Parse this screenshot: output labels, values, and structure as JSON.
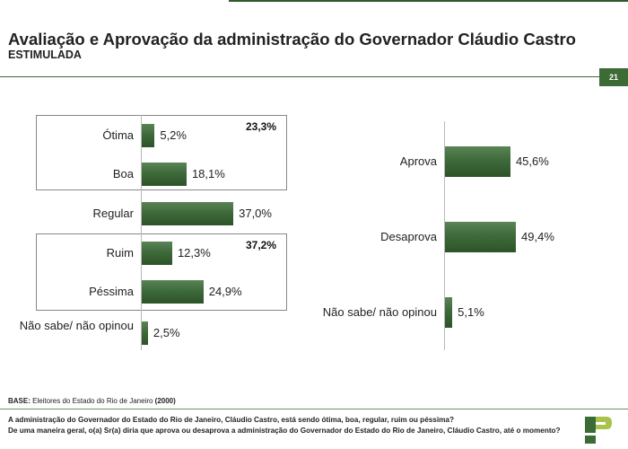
{
  "header": {
    "title": "Avaliação e Aprovação da administração do Governador Cláudio Castro",
    "subtitle": "ESTIMULADA",
    "page_number": "21"
  },
  "chart_data": [
    {
      "type": "bar",
      "orientation": "horizontal",
      "categories": [
        "Ótima",
        "Boa",
        "Regular",
        "Ruim",
        "Péssima",
        "Não sabe/ não opinou"
      ],
      "values": [
        5.2,
        18.1,
        37.0,
        12.3,
        24.9,
        2.5
      ],
      "value_labels": [
        "5,2%",
        "18,1%",
        "37,0%",
        "12,3%",
        "24,9%",
        "2,5%"
      ],
      "xlim": [
        0,
        50
      ],
      "groups": [
        {
          "categories": [
            "Ótima",
            "Boa"
          ],
          "total_label": "23,3%"
        },
        {
          "categories": [
            "Ruim",
            "Péssima"
          ],
          "total_label": "37,2%"
        }
      ],
      "bar_color": "#3e6a3a"
    },
    {
      "type": "bar",
      "orientation": "horizontal",
      "categories": [
        "Aprova",
        "Desaprova",
        "Não sabe/ não opinou"
      ],
      "values": [
        45.6,
        49.4,
        5.1
      ],
      "value_labels": [
        "45,6%",
        "49,4%",
        "5,1%"
      ],
      "xlim": [
        0,
        50
      ],
      "bar_color": "#3e6a3a"
    }
  ],
  "footer": {
    "base_label": "BASE:",
    "base_text": "Eleitores do Estado do Rio de Janeiro",
    "base_count": "(2000)",
    "question_1": "A administração do Governador do Estado do Rio de Janeiro, Cláudio Castro, está sendo ótima, boa, regular, ruim ou péssima?",
    "question_2": "De uma maneira geral, o(a) Sr(a) diria que aprova ou desaprova a administração do Governador do Estado do Rio de Janeiro, Cláudio Castro, até o momento?"
  },
  "colors": {
    "accent": "#3c6b36",
    "bar": "#3e6a3a",
    "logo_light": "#a8c34a"
  },
  "icons": {
    "logo": "paraná-pesquisas-logo"
  }
}
